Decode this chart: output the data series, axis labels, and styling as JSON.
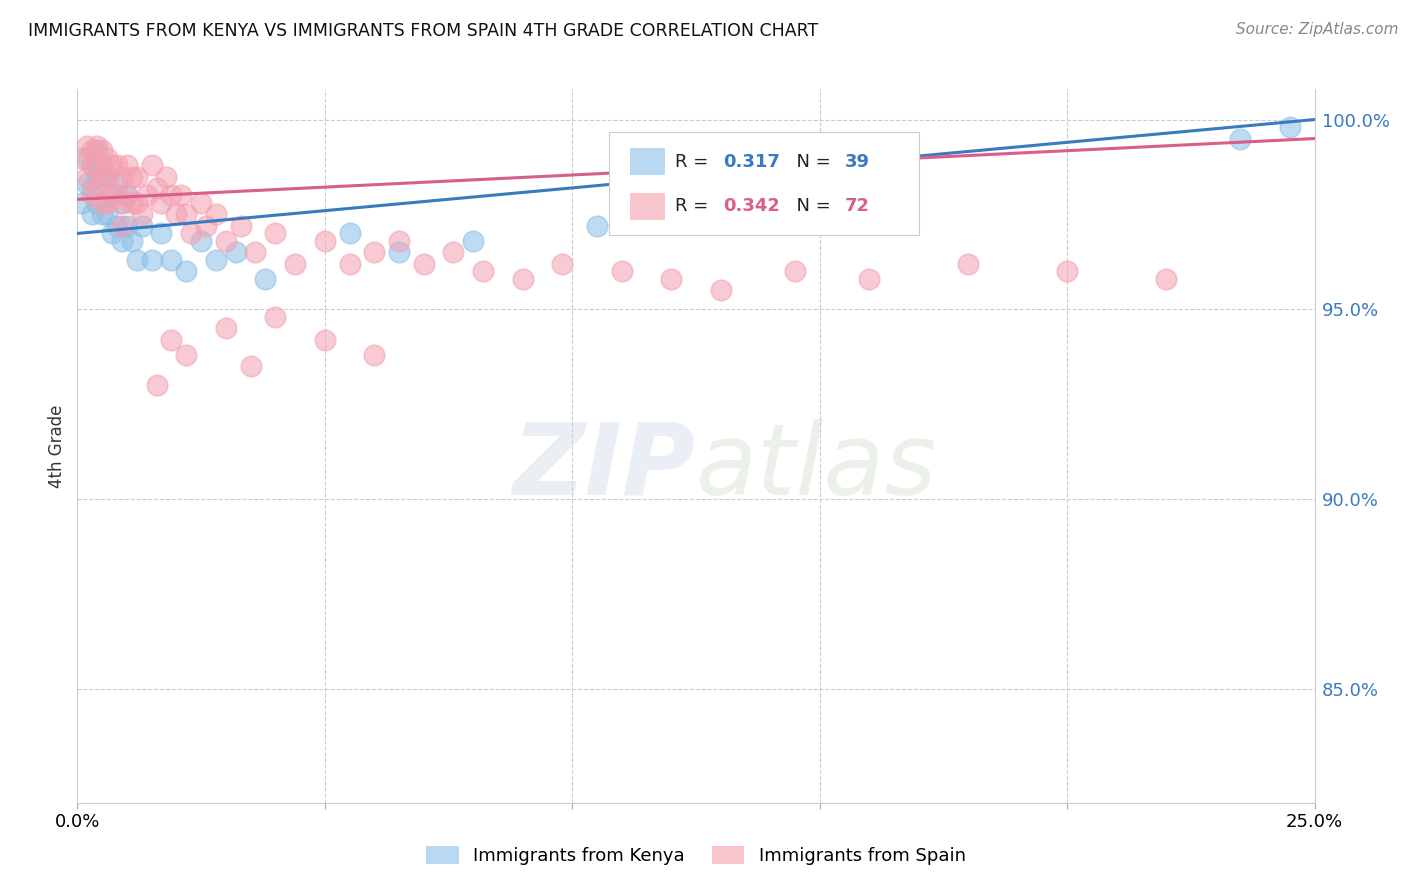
{
  "title": "IMMIGRANTS FROM KENYA VS IMMIGRANTS FROM SPAIN 4TH GRADE CORRELATION CHART",
  "source": "Source: ZipAtlas.com",
  "ylabel": "4th Grade",
  "xlim": [
    0.0,
    0.25
  ],
  "ylim": [
    0.82,
    1.008
  ],
  "yticks": [
    0.85,
    0.9,
    0.95,
    1.0
  ],
  "ytick_labels": [
    "85.0%",
    "90.0%",
    "95.0%",
    "100.0%"
  ],
  "kenya_R": 0.317,
  "kenya_N": 39,
  "spain_R": 0.342,
  "spain_N": 72,
  "kenya_color": "#8bbfe8",
  "spain_color": "#f4a0b0",
  "kenya_line_color": "#3a7abf",
  "spain_line_color": "#d95f8a",
  "background_color": "#ffffff",
  "kenya_x": [
    0.001,
    0.002,
    0.002,
    0.003,
    0.003,
    0.003,
    0.004,
    0.004,
    0.004,
    0.005,
    0.005,
    0.006,
    0.006,
    0.007,
    0.007,
    0.008,
    0.008,
    0.009,
    0.009,
    0.01,
    0.01,
    0.011,
    0.012,
    0.013,
    0.015,
    0.017,
    0.019,
    0.022,
    0.025,
    0.028,
    0.032,
    0.038,
    0.055,
    0.065,
    0.08,
    0.105,
    0.13,
    0.235,
    0.245
  ],
  "kenya_y": [
    0.978,
    0.99,
    0.983,
    0.988,
    0.982,
    0.975,
    0.992,
    0.985,
    0.978,
    0.988,
    0.975,
    0.985,
    0.975,
    0.98,
    0.97,
    0.983,
    0.972,
    0.978,
    0.968,
    0.98,
    0.972,
    0.968,
    0.963,
    0.972,
    0.963,
    0.97,
    0.963,
    0.96,
    0.968,
    0.963,
    0.965,
    0.958,
    0.97,
    0.965,
    0.968,
    0.972,
    0.975,
    0.995,
    0.998
  ],
  "spain_x": [
    0.001,
    0.002,
    0.002,
    0.003,
    0.003,
    0.003,
    0.004,
    0.004,
    0.004,
    0.005,
    0.005,
    0.005,
    0.006,
    0.006,
    0.006,
    0.007,
    0.007,
    0.008,
    0.008,
    0.009,
    0.009,
    0.009,
    0.01,
    0.01,
    0.011,
    0.011,
    0.012,
    0.012,
    0.013,
    0.014,
    0.015,
    0.016,
    0.017,
    0.018,
    0.019,
    0.02,
    0.021,
    0.022,
    0.023,
    0.025,
    0.026,
    0.028,
    0.03,
    0.033,
    0.036,
    0.04,
    0.044,
    0.05,
    0.055,
    0.06,
    0.065,
    0.07,
    0.076,
    0.082,
    0.09,
    0.098,
    0.11,
    0.12,
    0.13,
    0.145,
    0.16,
    0.18,
    0.2,
    0.22,
    0.016,
    0.019,
    0.022,
    0.03,
    0.035,
    0.04,
    0.05,
    0.06
  ],
  "spain_y": [
    0.99,
    0.993,
    0.985,
    0.992,
    0.988,
    0.98,
    0.993,
    0.988,
    0.982,
    0.992,
    0.985,
    0.978,
    0.99,
    0.985,
    0.978,
    0.988,
    0.98,
    0.988,
    0.98,
    0.985,
    0.978,
    0.972,
    0.988,
    0.98,
    0.985,
    0.978,
    0.985,
    0.978,
    0.975,
    0.98,
    0.988,
    0.982,
    0.978,
    0.985,
    0.98,
    0.975,
    0.98,
    0.975,
    0.97,
    0.978,
    0.972,
    0.975,
    0.968,
    0.972,
    0.965,
    0.97,
    0.962,
    0.968,
    0.962,
    0.965,
    0.968,
    0.962,
    0.965,
    0.96,
    0.958,
    0.962,
    0.96,
    0.958,
    0.955,
    0.96,
    0.958,
    0.962,
    0.96,
    0.958,
    0.93,
    0.942,
    0.938,
    0.945,
    0.935,
    0.948,
    0.942,
    0.938
  ]
}
